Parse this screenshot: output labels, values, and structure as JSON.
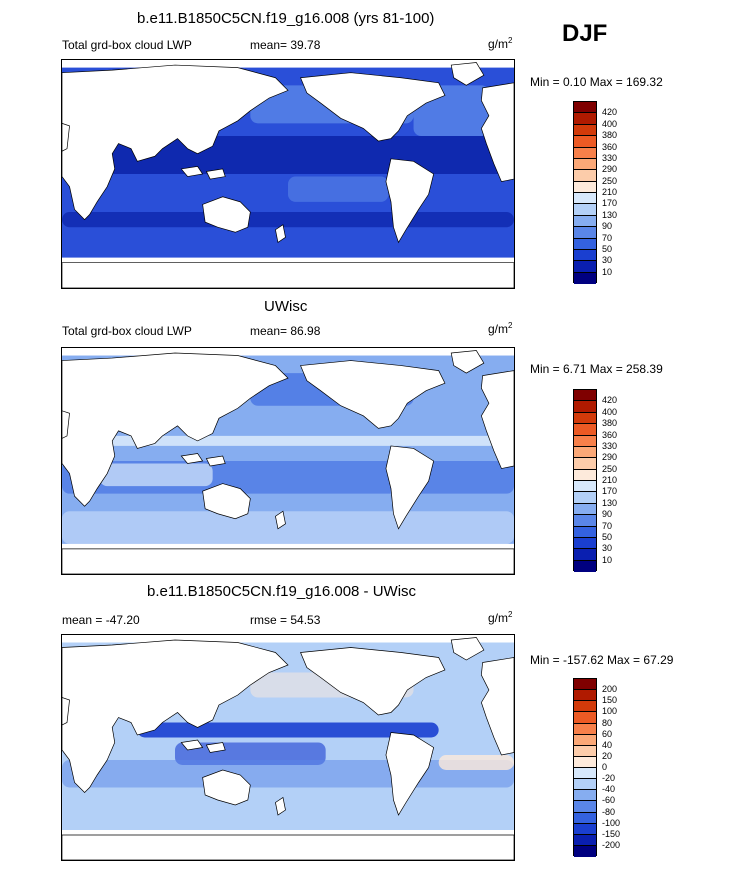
{
  "season": "DJF",
  "panels": [
    {
      "title": "b.e11.B1850C5CN.f19_g16.008 (yrs 81-100)",
      "left_label": "Total grd-box cloud LWP",
      "mid_label": "mean=  39.78",
      "unit": "g/m",
      "unit_sup": "2",
      "minmax": "Min =   0.10 Max = 169.32",
      "scale": "abs"
    },
    {
      "title": "UWisc",
      "left_label": "Total grd-box cloud LWP",
      "mid_label": "mean=  86.98",
      "unit": "g/m",
      "unit_sup": "2",
      "minmax": "Min =   6.71 Max = 258.39",
      "scale": "abs"
    },
    {
      "title": "b.e11.B1850C5CN.f19_g16.008 - UWisc",
      "left_label": "mean = -47.20",
      "mid_label": "rmse =  54.53",
      "unit": "g/m",
      "unit_sup": "2",
      "minmax": "Min = -157.62 Max =  67.29",
      "scale": "diff"
    }
  ],
  "colorbars": {
    "abs": {
      "labels": [
        "420",
        "400",
        "380",
        "360",
        "330",
        "290",
        "250",
        "210",
        "170",
        "130",
        "90",
        "70",
        "50",
        "30",
        "10"
      ],
      "colors": [
        "#7f0000",
        "#b01a00",
        "#d23a0a",
        "#ec5a24",
        "#f7804a",
        "#fba877",
        "#fcccaa",
        "#fdeadb",
        "#d7e8fb",
        "#b3d0f7",
        "#86adf0",
        "#5a86e8",
        "#3462e0",
        "#1a3fd0",
        "#0a1fb0",
        "#000080"
      ]
    },
    "diff": {
      "labels": [
        "200",
        "150",
        "100",
        "80",
        "60",
        "40",
        "20",
        "0",
        "-20",
        "-40",
        "-60",
        "-80",
        "-100",
        "-150",
        "-200"
      ],
      "colors": [
        "#7f0000",
        "#b01a00",
        "#d23a0a",
        "#ec5a24",
        "#f7804a",
        "#fba877",
        "#fcccaa",
        "#fdeadb",
        "#d7e8fb",
        "#b3d0f7",
        "#86adf0",
        "#5a86e8",
        "#3462e0",
        "#1a3fd0",
        "#0a1fb0",
        "#000080"
      ]
    }
  },
  "map_colors": {
    "land": "#ffffff",
    "coast": "#000000",
    "p1_base": "#2a4fd8",
    "p1_dark": "#0a22a8",
    "p1_light": "#5a86e8",
    "p2_base": "#86adf0",
    "p2_dark": "#3462e0",
    "p2_light": "#d7e8fb",
    "p3_base": "#b3d0f7",
    "p3_dark": "#1a3fd0",
    "p3_light": "#fdeadb"
  }
}
